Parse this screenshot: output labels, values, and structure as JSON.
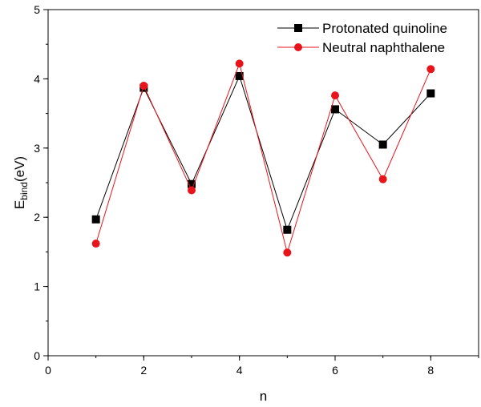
{
  "chart_data": {
    "type": "line",
    "xlabel": "n",
    "ylabel": "E",
    "ylabel_subscript": "bind",
    "ylabel_unit": "(eV)",
    "xlim": [
      0,
      9
    ],
    "ylim": [
      0,
      5
    ],
    "x_ticks": [
      0,
      2,
      4,
      6,
      8
    ],
    "y_ticks": [
      0,
      1,
      2,
      3,
      4,
      5
    ],
    "x_minor_step": 1,
    "y_minor_step": 0.5,
    "grid": false,
    "legend_position": "top-right",
    "series": [
      {
        "name": "Protonated quinoline",
        "marker": "square",
        "color": "#000000",
        "x": [
          1,
          2,
          3,
          4,
          5,
          6,
          7,
          8
        ],
        "y": [
          1.97,
          3.87,
          2.48,
          4.04,
          1.82,
          3.56,
          3.05,
          3.79
        ]
      },
      {
        "name": "Neutral naphthalene",
        "marker": "circle",
        "color": "#e8141c",
        "x": [
          1,
          2,
          3,
          4,
          5,
          6,
          7,
          8
        ],
        "y": [
          1.62,
          3.9,
          2.39,
          4.22,
          1.49,
          3.76,
          2.55,
          4.14
        ]
      }
    ]
  }
}
